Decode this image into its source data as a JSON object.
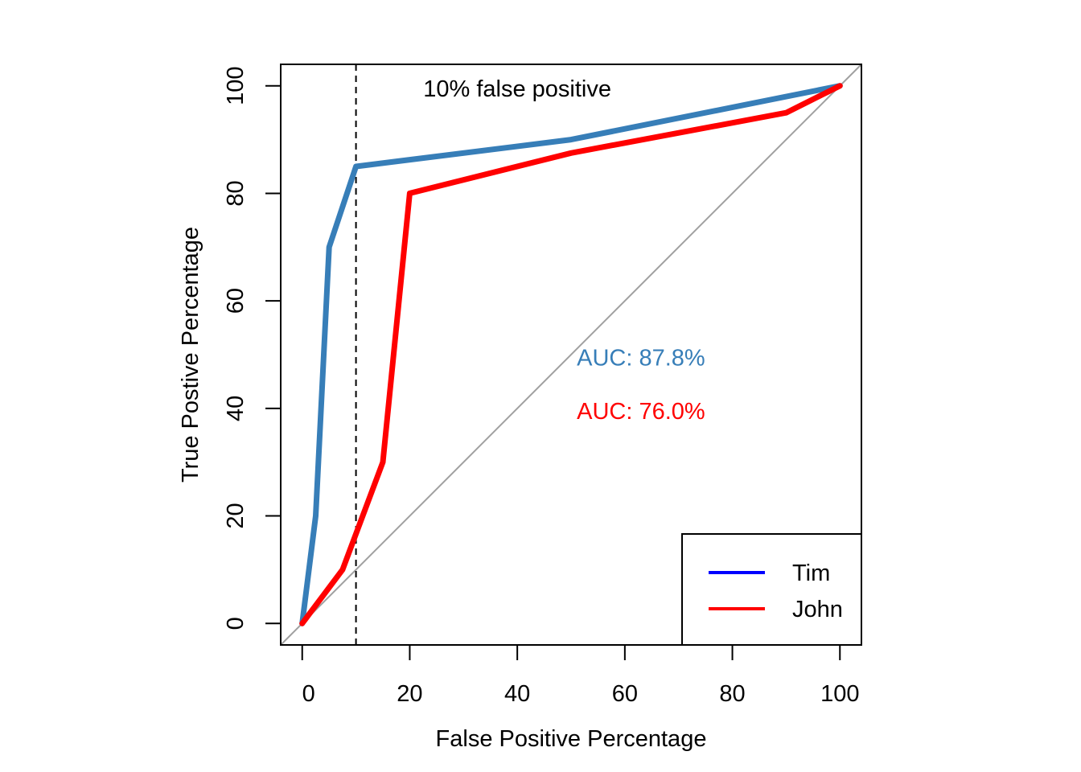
{
  "chart_data": {
    "type": "line",
    "title": "",
    "xlabel": "False Positive Percentage",
    "ylabel": "True Postive Percentage",
    "xlim": [
      -4,
      104
    ],
    "ylim": [
      -4,
      104
    ],
    "xticks": [
      0,
      20,
      40,
      60,
      80,
      100
    ],
    "yticks": [
      0,
      20,
      40,
      60,
      80,
      100
    ],
    "xtick_labels": [
      "0",
      "20",
      "40",
      "60",
      "80",
      "100"
    ],
    "ytick_labels": [
      "0",
      "20",
      "40",
      "60",
      "80",
      "100"
    ],
    "grid": false,
    "series": [
      {
        "name": "Tim",
        "color": "#377EB8",
        "legend_color": "#0000FF",
        "x": [
          0,
          2.5,
          5,
          10,
          50,
          100
        ],
        "y": [
          0,
          20,
          70,
          85,
          90,
          100
        ]
      },
      {
        "name": "John",
        "color": "#FF0000",
        "legend_color": "#FF0000",
        "x": [
          0,
          7.5,
          15,
          20,
          50,
          90,
          100
        ],
        "y": [
          0,
          10,
          30,
          80,
          87.5,
          95,
          100
        ]
      }
    ],
    "reference_line": {
      "type": "diagonal",
      "color": "#A0A0A0"
    },
    "vertical_line": {
      "x": 10,
      "style": "dashed",
      "color": "#000000"
    },
    "annotations": [
      {
        "text": "10% false positive",
        "x": 40,
        "y": 98,
        "color": "#000000"
      },
      {
        "text": "AUC: 87.8%",
        "x": 63,
        "y": 48,
        "color": "#377EB8"
      },
      {
        "text": "AUC: 76.0%",
        "x": 63,
        "y": 38,
        "color": "#FF0000"
      }
    ],
    "legend": {
      "position": "bottom-right",
      "entries": [
        {
          "label": "Tim",
          "color": "#0000FF"
        },
        {
          "label": "John",
          "color": "#FF0000"
        }
      ]
    }
  }
}
